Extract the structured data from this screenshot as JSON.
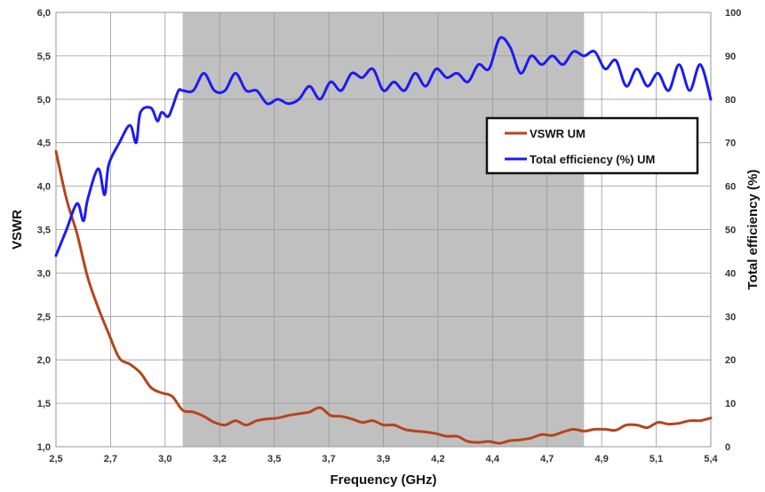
{
  "chart_data": {
    "type": "line",
    "xlabel": "Frequency (GHz)",
    "ylabel_left": "VSWR",
    "ylabel_right": "Total efficiency (%)",
    "x_range": [
      2.5,
      5.6
    ],
    "x_tick_labels": [
      "2,5",
      "2,7",
      "3,0",
      "3,2",
      "3,5",
      "3,7",
      "3,9",
      "4,2",
      "4,4",
      "4,7",
      "4,9",
      "5,1",
      "5,4"
    ],
    "y_left_range": [
      1.0,
      6.0
    ],
    "y_left_tick_labels": [
      "1,0",
      "1,5",
      "2,0",
      "2,5",
      "3,0",
      "3,5",
      "4,0",
      "4,5",
      "5,0",
      "5,5",
      "6,0"
    ],
    "y_right_range": [
      0,
      100
    ],
    "y_right_tick_labels": [
      "0",
      "10",
      "20",
      "30",
      "40",
      "50",
      "60",
      "70",
      "80",
      "90",
      "100"
    ],
    "grid": true,
    "shaded_band": {
      "x_start": 3.1,
      "x_end": 5.0,
      "color": "#c0c0c0"
    },
    "legend": {
      "placement": "right-center"
    },
    "series": [
      {
        "name": "VSWR UM",
        "axis": "left",
        "color": "#b5451b",
        "x": [
          2.5,
          2.55,
          2.6,
          2.65,
          2.7,
          2.75,
          2.8,
          2.85,
          2.9,
          2.95,
          3.0,
          3.05,
          3.1,
          3.15,
          3.2,
          3.25,
          3.3,
          3.35,
          3.4,
          3.45,
          3.5,
          3.55,
          3.6,
          3.65,
          3.7,
          3.75,
          3.8,
          3.85,
          3.9,
          3.95,
          4.0,
          4.05,
          4.1,
          4.15,
          4.2,
          4.25,
          4.3,
          4.35,
          4.4,
          4.45,
          4.5,
          4.55,
          4.6,
          4.65,
          4.7,
          4.75,
          4.8,
          4.85,
          4.9,
          4.95,
          5.0,
          5.05,
          5.1,
          5.15,
          5.2,
          5.25,
          5.3,
          5.35,
          5.4,
          5.45,
          5.5,
          5.55,
          5.6
        ],
        "values": [
          4.4,
          3.85,
          3.45,
          2.95,
          2.6,
          2.3,
          2.02,
          1.95,
          1.85,
          1.68,
          1.62,
          1.58,
          1.42,
          1.4,
          1.35,
          1.28,
          1.25,
          1.3,
          1.25,
          1.3,
          1.32,
          1.33,
          1.36,
          1.38,
          1.4,
          1.45,
          1.36,
          1.35,
          1.32,
          1.28,
          1.3,
          1.25,
          1.25,
          1.2,
          1.18,
          1.17,
          1.15,
          1.12,
          1.12,
          1.06,
          1.05,
          1.06,
          1.04,
          1.07,
          1.08,
          1.1,
          1.14,
          1.13,
          1.17,
          1.2,
          1.18,
          1.2,
          1.2,
          1.19,
          1.25,
          1.25,
          1.22,
          1.28,
          1.26,
          1.27,
          1.3,
          1.3,
          1.33
        ]
      },
      {
        "name": "Total efficiency (%) UM",
        "axis": "right",
        "color": "#1c1cf0",
        "x": [
          2.5,
          2.55,
          2.6,
          2.63,
          2.65,
          2.7,
          2.73,
          2.75,
          2.8,
          2.85,
          2.88,
          2.9,
          2.95,
          2.98,
          3.0,
          3.03,
          3.05,
          3.08,
          3.1,
          3.15,
          3.2,
          3.25,
          3.3,
          3.35,
          3.4,
          3.45,
          3.5,
          3.55,
          3.6,
          3.65,
          3.7,
          3.75,
          3.8,
          3.85,
          3.9,
          3.95,
          4.0,
          4.05,
          4.1,
          4.15,
          4.2,
          4.25,
          4.3,
          4.35,
          4.4,
          4.45,
          4.5,
          4.55,
          4.6,
          4.65,
          4.7,
          4.75,
          4.8,
          4.85,
          4.9,
          4.95,
          5.0,
          5.05,
          5.1,
          5.15,
          5.2,
          5.25,
          5.3,
          5.35,
          5.4,
          5.45,
          5.5,
          5.55,
          5.6
        ],
        "values": [
          44,
          50,
          56,
          52,
          57,
          64,
          58,
          65,
          70,
          74,
          70,
          77,
          78,
          75,
          77,
          76,
          78,
          82,
          82,
          82,
          86,
          82,
          82,
          86,
          82,
          82,
          79,
          80,
          79,
          80,
          83,
          80,
          84,
          82,
          86,
          85,
          87,
          82,
          84,
          82,
          86,
          83,
          87,
          85,
          86,
          84,
          88,
          87,
          94,
          92,
          86,
          90,
          88,
          90,
          88,
          91,
          90,
          91,
          87,
          89,
          83,
          87,
          83,
          86,
          82,
          88,
          82,
          88,
          80
        ]
      }
    ]
  }
}
